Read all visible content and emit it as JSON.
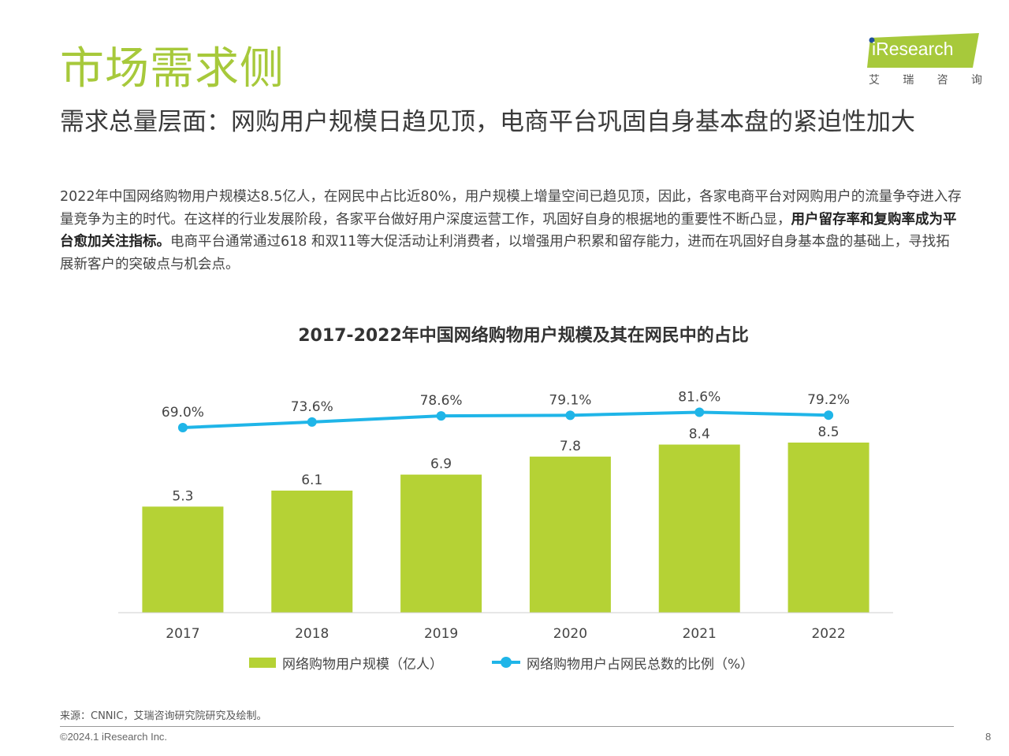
{
  "header": {
    "title": "市场需求侧",
    "subtitle": "需求总量层面：网购用户规模日趋见顶，电商平台巩固自身基本盘的紧迫性加大"
  },
  "logo": {
    "brand": "iResearch",
    "cn": [
      "艾",
      "瑞",
      "咨",
      "询"
    ]
  },
  "intro": {
    "part1": "2022年中国网络购物用户规模达8.5亿人，在网民中占比近80%，用户规模上增量空间已趋见顶，因此，各家电商平台对网购用户的流量争夺进入存量竞争为主的时代。在这样的行业发展阶段，各家平台做好用户深度运营工作，巩固好自身的根据地的重要性不断凸显，",
    "bold": "用户留存率和复购率成为平台愈加关注指标。",
    "part2": "电商平台通常通过618 和双11等大促活动让利消费者，以增强用户积累和留存能力，进而在巩固好自身基本盘的基础上，寻找拓展新客户的突破点与机会点。"
  },
  "chart_data": {
    "type": "bar",
    "title": "2017-2022年中国网络购物用户规模及其在网民中的占比",
    "categories": [
      "2017",
      "2018",
      "2019",
      "2020",
      "2021",
      "2022"
    ],
    "series": [
      {
        "name": "网络购物用户规模（亿人）",
        "type": "bar",
        "values": [
          5.3,
          6.1,
          6.9,
          7.8,
          8.4,
          8.5
        ],
        "labels": [
          "5.3",
          "6.1",
          "6.9",
          "7.8",
          "8.4",
          "8.5"
        ],
        "color": "#b5d235"
      },
      {
        "name": "网络购物用户占网民总数的比例（%）",
        "type": "line",
        "values": [
          69.0,
          73.6,
          78.6,
          79.1,
          81.6,
          79.2
        ],
        "labels": [
          "69.0%",
          "73.6%",
          "78.6%",
          "79.1%",
          "81.6%",
          "79.2%"
        ],
        "color": "#1fb5e8"
      }
    ],
    "grid": false,
    "legend_position": "bottom"
  },
  "footer": {
    "source": "来源：CNNIC，艾瑞咨询研究院研究及绘制。",
    "copyright": "©2024.1 iResearch Inc.",
    "page": "8"
  },
  "colors": {
    "accent_green": "#a7c93b",
    "bar_green": "#b5d235",
    "line_blue": "#1fb5e8"
  }
}
